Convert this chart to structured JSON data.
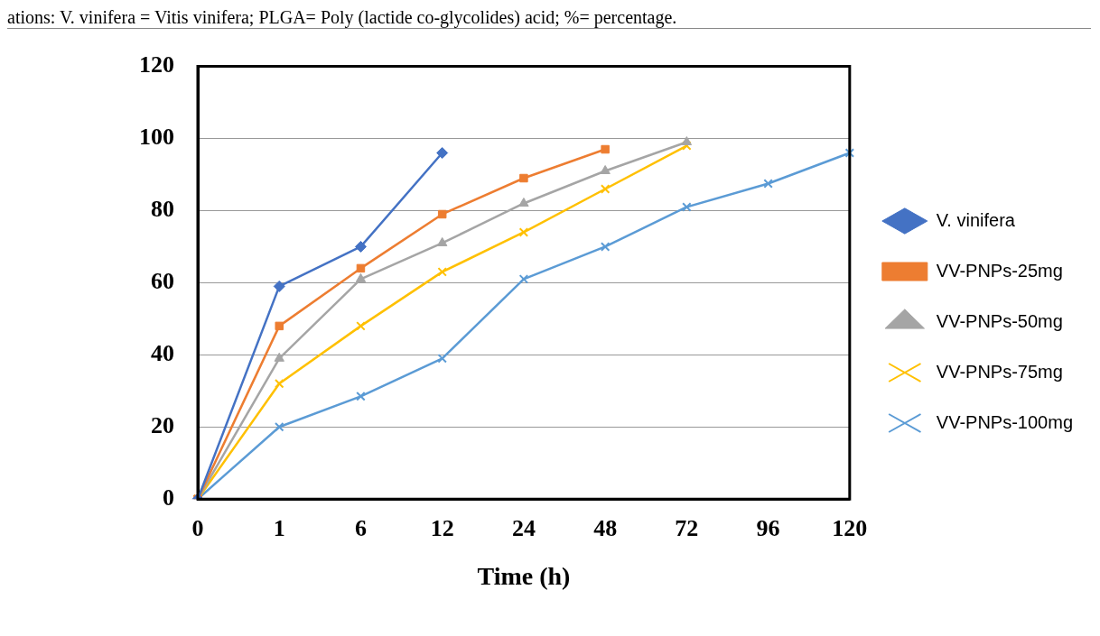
{
  "chart_data": {
    "type": "line",
    "xlabel": "Time (h)",
    "annotations": [
      "ations: V. vinifera = Vitis vinifera; PLGA= Poly (lactide co-glycolides) acid; %= percentage."
    ],
    "categories": [
      "0",
      "1",
      "6",
      "12",
      "24",
      "48",
      "72",
      "96",
      "120"
    ],
    "ylim": [
      0,
      120
    ],
    "yticks": [
      0,
      20,
      40,
      60,
      80,
      100,
      120
    ],
    "grid": "y",
    "legend": "right",
    "series": [
      {
        "name": "V. vinifera",
        "color": "#4472c4",
        "marker": "diamond",
        "values": [
          0,
          59,
          70,
          96,
          null,
          null,
          null,
          null,
          null
        ]
      },
      {
        "name": "VV-PNPs-25mg",
        "color": "#ed7d31",
        "marker": "square",
        "values": [
          0,
          48,
          64,
          79,
          89,
          97,
          null,
          null,
          null
        ]
      },
      {
        "name": "VV-PNPs-50mg",
        "color": "#a5a5a5",
        "marker": "triangle",
        "values": [
          0,
          39,
          61,
          71,
          82,
          91,
          99,
          null,
          null
        ]
      },
      {
        "name": "VV-PNPs-75mg",
        "color": "#ffc000",
        "marker": "cross",
        "values": [
          0,
          32,
          48,
          63,
          74,
          86,
          98,
          null,
          null
        ]
      },
      {
        "name": "VV-PNPs-100mg",
        "color": "#5b9bd5",
        "marker": "cross",
        "values": [
          0,
          20,
          28.5,
          39,
          61,
          70,
          81,
          87.5,
          96
        ]
      }
    ]
  }
}
